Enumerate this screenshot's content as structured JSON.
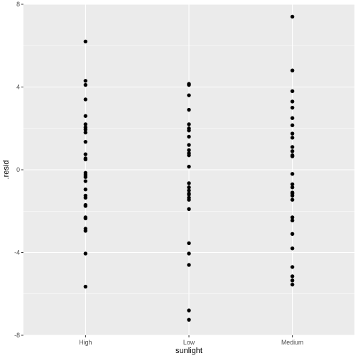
{
  "chart_data": {
    "type": "scatter",
    "title": "",
    "xlabel": "sunlight",
    "ylabel": ".resid",
    "categories": [
      "High",
      "Low",
      "Medium"
    ],
    "ylim": [
      -8,
      8
    ],
    "y_ticks": [
      -8,
      -4,
      0,
      4,
      8
    ],
    "grid": true,
    "series": [
      {
        "category": "High",
        "values": [
          6.2,
          4.3,
          4.1,
          3.4,
          2.6,
          2.2,
          2.05,
          1.95,
          1.8,
          1.35,
          0.75,
          0.55,
          0.5,
          -0.15,
          -0.25,
          -0.35,
          -0.55,
          -0.95,
          -1.25,
          -1.35,
          -1.7,
          -1.75,
          -2.3,
          -2.35,
          -2.85,
          -2.95,
          -4.05,
          -5.65
        ]
      },
      {
        "category": "Low",
        "values": [
          4.15,
          4.1,
          3.6,
          2.9,
          2.2,
          2.0,
          1.9,
          1.6,
          1.2,
          0.95,
          0.8,
          0.7,
          0.15,
          -0.65,
          -0.85,
          -1.0,
          -1.15,
          -1.2,
          -1.35,
          -1.45,
          -1.9,
          -3.55,
          -4.05,
          -4.6,
          -6.8,
          -7.25
        ]
      },
      {
        "category": "Medium",
        "values": [
          7.4,
          4.8,
          3.8,
          3.3,
          3.0,
          2.5,
          2.15,
          1.75,
          1.55,
          1.1,
          0.9,
          0.7,
          0.65,
          -0.2,
          -0.7,
          -0.85,
          -1.1,
          -1.15,
          -1.25,
          -1.45,
          -2.3,
          -2.45,
          -3.1,
          -3.8,
          -4.7,
          -5.15,
          -5.35,
          -5.55
        ]
      }
    ],
    "colors": {
      "panel_background": "#ebebeb",
      "gridline": "#ffffff",
      "point": "#000000",
      "tick_label": "#4d4d4d",
      "axis_title": "#000000"
    }
  }
}
